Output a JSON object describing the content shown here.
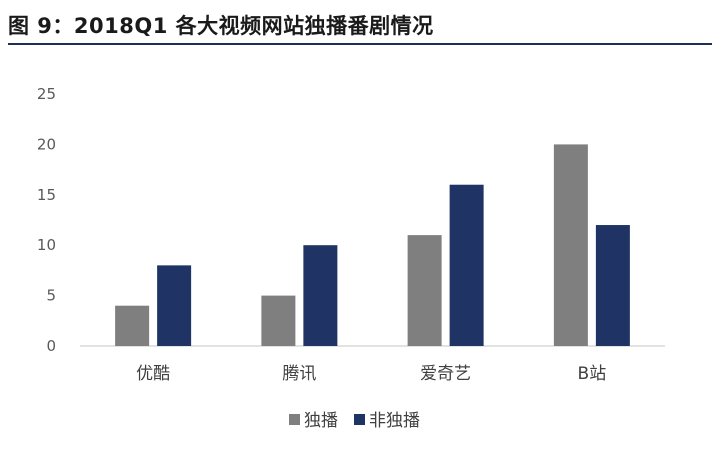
{
  "header": {
    "title": "图 9：2018Q1 各大视频网站独播番剧情况"
  },
  "chart_data": {
    "type": "bar",
    "title": "",
    "xlabel": "",
    "ylabel": "",
    "categories": [
      "优酷",
      "腾讯",
      "爱奇艺",
      "B站"
    ],
    "series": [
      {
        "name": "独播",
        "values": [
          4,
          5,
          11,
          20
        ],
        "color": "#7f7f7f"
      },
      {
        "name": "非独播",
        "values": [
          8,
          10,
          16,
          12
        ],
        "color": "#1f3464"
      }
    ],
    "ylim": [
      0,
      25
    ],
    "yticks": [
      0,
      5,
      10,
      15,
      20,
      25
    ],
    "grid": false,
    "legend": "bottom-center"
  }
}
